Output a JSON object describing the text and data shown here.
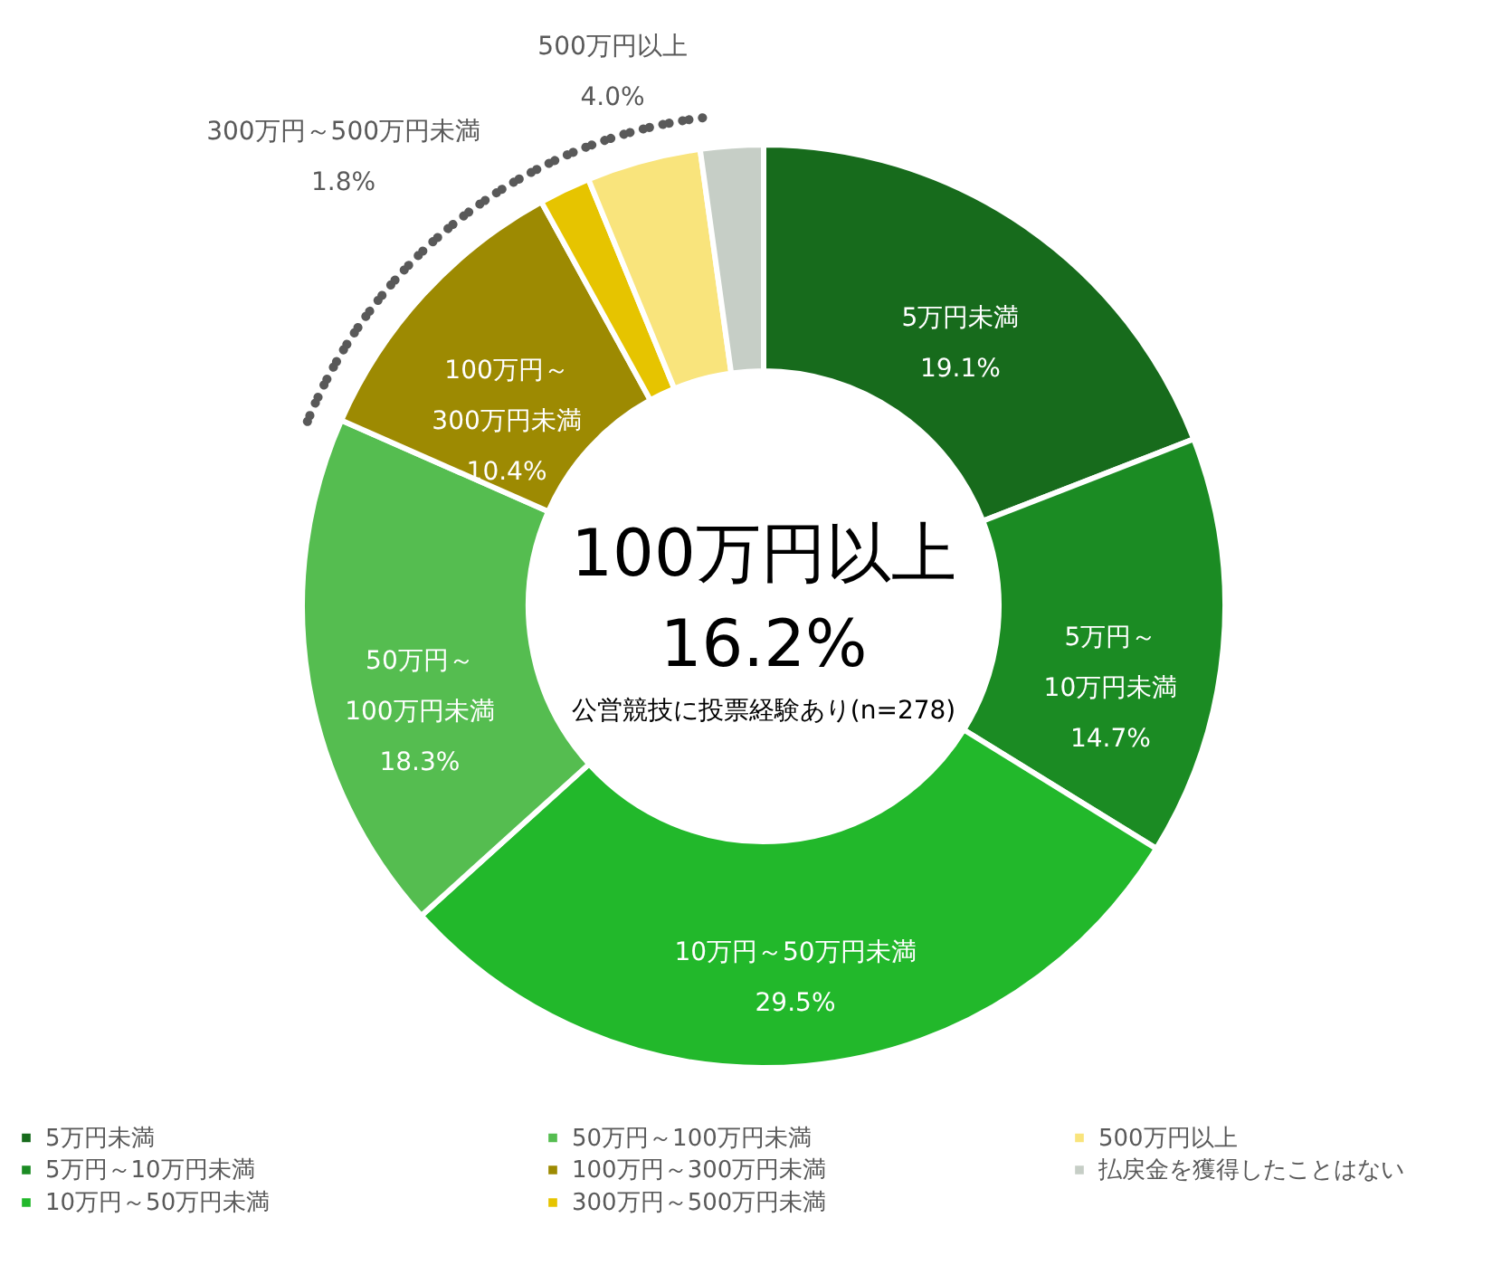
{
  "chart_data": {
    "type": "donut",
    "categories": [
      "5万円未満",
      "5万円～10万円未満",
      "10万円～50万円未満",
      "50万円～100万円未満",
      "100万円～300万円未満",
      "300万円～500万円未満",
      "500万円以上",
      "払戻金を獲得したことはない"
    ],
    "values": [
      19.1,
      14.7,
      29.5,
      18.3,
      10.4,
      1.8,
      4.0,
      2.2
    ],
    "colors": [
      "#176b1c",
      "#1b8b23",
      "#22b82b",
      "#55bd50",
      "#9d8a02",
      "#e6c400",
      "#f9e47c",
      "#c6cec6"
    ],
    "value_labels": [
      "19.1%",
      "14.7%",
      "29.5%",
      "18.3%",
      "10.4%",
      "1.8%",
      "4.0%",
      null
    ],
    "annotations": [
      "100万円以上",
      "16.2%",
      "公営競技に投票経験あり(n=278)"
    ],
    "legend": "bottom"
  }
}
